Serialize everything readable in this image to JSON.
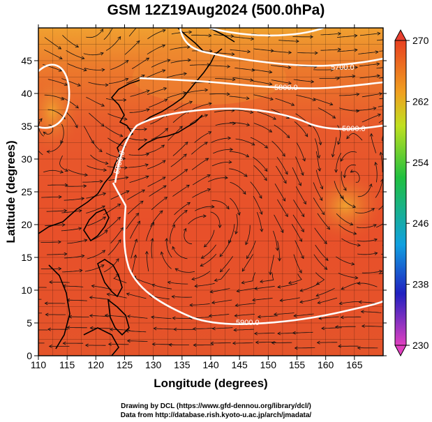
{
  "title": "GSM 12Z19Aug2024 (500.0hPa)",
  "x_axis": {
    "label": "Longitude (degrees)",
    "ticks": [
      "110",
      "115",
      "120",
      "125",
      "130",
      "135",
      "140",
      "145",
      "150",
      "155",
      "160",
      "165"
    ],
    "range": [
      110,
      170
    ]
  },
  "y_axis": {
    "label": "Latitude  (degrees)",
    "ticks": [
      "0",
      "5",
      "10",
      "15",
      "20",
      "25",
      "30",
      "35",
      "40",
      "45"
    ],
    "range": [
      0,
      50
    ]
  },
  "colorbar": {
    "ticks": [
      "230",
      "238",
      "246",
      "254",
      "262",
      "270"
    ],
    "range": [
      230,
      270
    ],
    "stops": [
      "#e040c0",
      "#2020c0",
      "#10a0e0",
      "#20c040",
      "#c0e020",
      "#f0a020",
      "#e84020"
    ]
  },
  "contours": [
    {
      "label": "5700.0"
    },
    {
      "label": "5800.0"
    },
    {
      "label": "5900.0"
    },
    {
      "label": "5900.0"
    },
    {
      "label": "5900.0"
    }
  ],
  "credit": {
    "line1": "Drawing by DCL (https://www.gfd-dennou.org/library/dcl/)",
    "line2": "Data from http://database.rish.kyoto-u.ac.jp/arch/jmadata/"
  }
}
